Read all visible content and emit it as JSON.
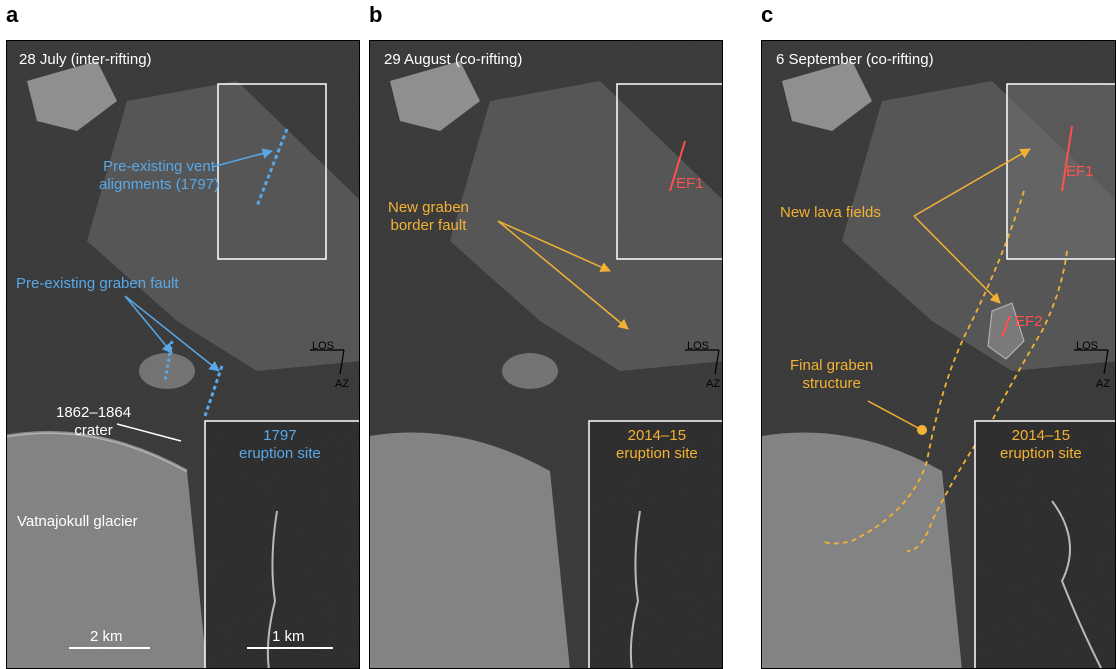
{
  "panels": [
    {
      "letter": "a",
      "date_label": "28 July (inter-rifting)",
      "annotations": {
        "vent": "Pre-existing vent\nalignments (1797)",
        "graben": "Pre-existing graben fault",
        "crater": "1862–1864\ncrater",
        "glacier": "Vatnajokull glacier",
        "inset": "1797\neruption site",
        "scale_main": "2 km",
        "scale_inset": "1 km"
      },
      "compass": {
        "los": "LOS",
        "az": "AZ"
      },
      "colors": {
        "annotation": "#58a8e8"
      }
    },
    {
      "letter": "b",
      "date_label": "29 August (co-rifting)",
      "annotations": {
        "fault": "New graben\nborder fault",
        "fissure": "EF1",
        "inset": "2014–15\neruption site"
      },
      "compass": {
        "los": "LOS",
        "az": "AZ"
      },
      "colors": {
        "annotation": "#f3b233",
        "fissure": "#ff5050"
      }
    },
    {
      "letter": "c",
      "date_label": "6 September (co-rifting)",
      "annotations": {
        "lava": "New lava fields",
        "fissure1": "EF1",
        "fissure2": "EF2",
        "graben": "Final graben\nstructure",
        "inset": "2014–15\neruption site"
      },
      "compass": {
        "los": "LOS",
        "az": "AZ"
      },
      "colors": {
        "annotation": "#f3b233",
        "fissure": "#ff5050"
      }
    }
  ]
}
